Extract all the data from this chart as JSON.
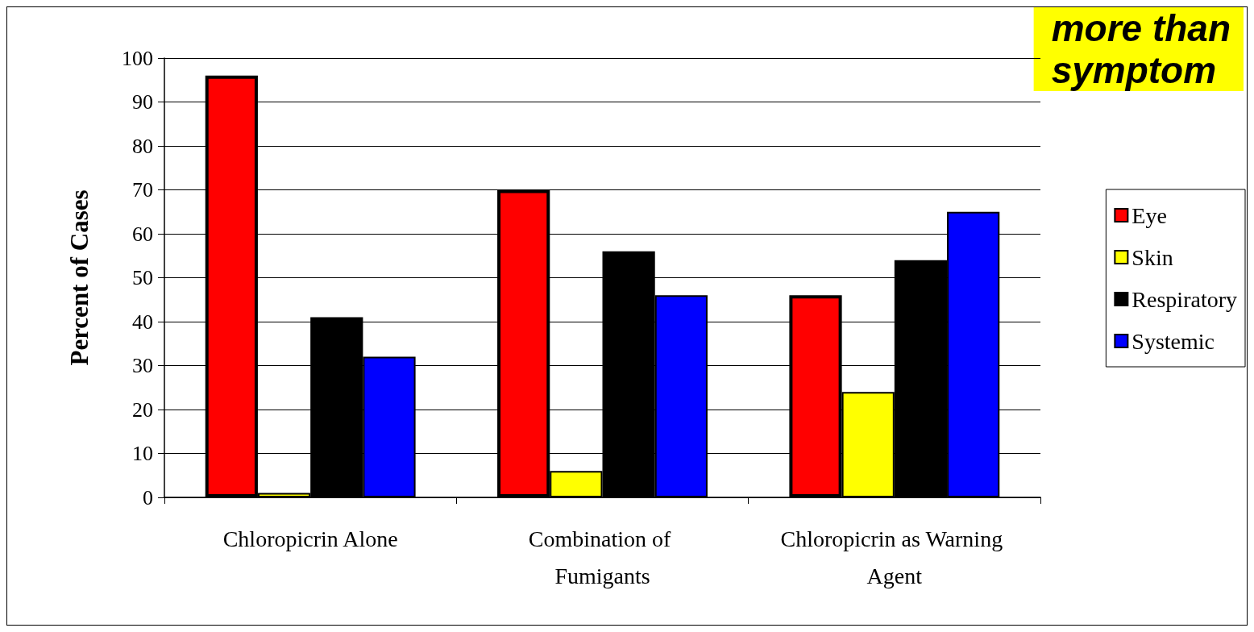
{
  "chart_data": {
    "type": "bar",
    "ylabel": "Percent of Cases",
    "categories": [
      "Chloropicrin Alone",
      "Combination of Fumigants",
      "Chloropicrin as Warning Agent"
    ],
    "series": [
      {
        "name": "Eye",
        "color": "#ff0000",
        "values": [
          96,
          70,
          46
        ]
      },
      {
        "name": "Skin",
        "color": "#ffff00",
        "values": [
          1,
          6,
          24
        ]
      },
      {
        "name": "Respiratory",
        "color": "#000000",
        "values": [
          41,
          56,
          54
        ]
      },
      {
        "name": "Systemic",
        "color": "#0000ff",
        "values": [
          32,
          46,
          65
        ]
      }
    ],
    "ylim": [
      0,
      100
    ],
    "yticks": [
      0,
      10,
      20,
      30,
      40,
      50,
      60,
      70,
      80,
      90,
      100
    ],
    "grid": "y",
    "legend": "right",
    "annotations": [
      "more than\nsymptom"
    ]
  }
}
